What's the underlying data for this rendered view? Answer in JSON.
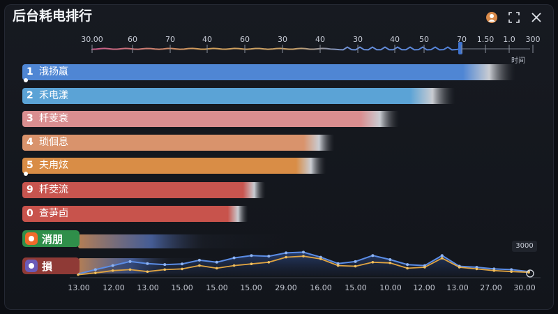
{
  "window": {
    "title": "后台耗电排行"
  },
  "top_axis": {
    "ticks": [
      "30.00",
      "60",
      "70",
      "40",
      "60",
      "30",
      "40",
      "30",
      "40",
      "50",
      "70",
      "1.50",
      "1.0",
      "300"
    ],
    "unit": "时间"
  },
  "rows": [
    {
      "rank": "1",
      "name": "涐扬蠃",
      "value": 0.95,
      "color": "#4f86d4"
    },
    {
      "rank": "2",
      "name": "禾电漾",
      "value": 0.81,
      "color": "#5ba3d6"
    },
    {
      "rank": "3",
      "name": "粁芰衰",
      "value": 0.68,
      "color": "#d98e90"
    },
    {
      "rank": "4",
      "name": "琐佪息",
      "value": 0.53,
      "color": "#d9936c"
    },
    {
      "rank": "5",
      "name": "夫甪炫",
      "value": 0.51,
      "color": "#d98d46"
    },
    {
      "rank": "9",
      "name": "粁茭流",
      "value": 0.37,
      "color": "#c8554f"
    },
    {
      "rank": "0",
      "name": "查芛卣",
      "value": 0.33,
      "color": "#c8534c"
    }
  ],
  "badges": [
    {
      "name": "消朋",
      "color": "#2f8f4a",
      "icon_color": "#f06a2a"
    },
    {
      "name": "損",
      "color": "#8f3a36",
      "icon_color": "#6a5bb8"
    }
  ],
  "bottom_axis": {
    "ticks": [
      "13.00",
      "12.00",
      "13.00",
      "15.00",
      "15.00",
      "15.00",
      "29.00",
      "16.00",
      "15.00",
      "10.00",
      "12.00",
      "13.00",
      "27.00",
      "30.00"
    ]
  },
  "line_badge": "3000",
  "line_series": {
    "blue": [
      0.05,
      0.18,
      0.3,
      0.42,
      0.36,
      0.33,
      0.35,
      0.46,
      0.4,
      0.53,
      0.6,
      0.58,
      0.68,
      0.7,
      0.55,
      0.36,
      0.42,
      0.6,
      0.48,
      0.33,
      0.3,
      0.6,
      0.28,
      0.25,
      0.2,
      0.18,
      0.12
    ],
    "yellow": [
      0.03,
      0.08,
      0.15,
      0.18,
      0.12,
      0.18,
      0.2,
      0.3,
      0.22,
      0.3,
      0.35,
      0.4,
      0.55,
      0.58,
      0.5,
      0.3,
      0.28,
      0.4,
      0.38,
      0.22,
      0.25,
      0.52,
      0.25,
      0.2,
      0.15,
      0.12,
      0.1
    ]
  }
}
